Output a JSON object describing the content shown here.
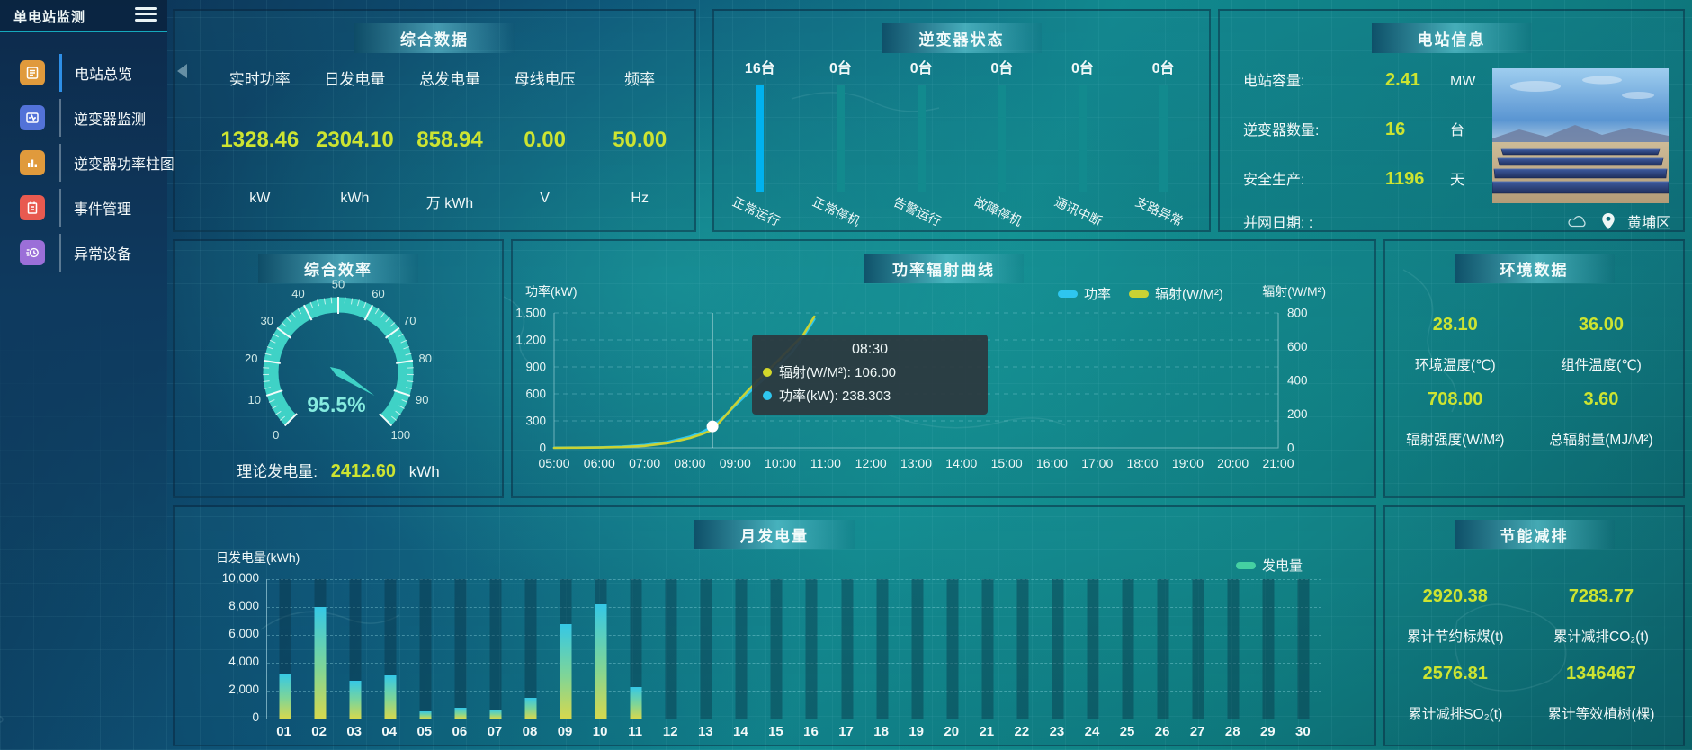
{
  "app": {
    "title": "单电站监测"
  },
  "colors": {
    "accent_yellow": "#cde431",
    "teal": "#3fd2c6",
    "cyan": "#2ec6ef"
  },
  "sidebar": {
    "items": [
      {
        "label": "电站总览",
        "color": "#e09a3c",
        "active": true
      },
      {
        "label": "逆变器监测",
        "color": "#5272d8",
        "active": false
      },
      {
        "label": "逆变器功率柱图",
        "color": "#e09a3c",
        "active": false
      },
      {
        "label": "事件管理",
        "color": "#e85a50",
        "active": false
      },
      {
        "label": "异常设备",
        "color": "#9b6fd8",
        "active": false
      }
    ]
  },
  "summary": {
    "title": "综合数据",
    "metrics": [
      {
        "label": "实时功率",
        "value": "1328.46",
        "unit": "kW"
      },
      {
        "label": "日发电量",
        "value": "2304.10",
        "unit": "kWh"
      },
      {
        "label": "总发电量",
        "value": "858.94",
        "unit": "万 kWh"
      },
      {
        "label": "母线电压",
        "value": "0.00",
        "unit": "V"
      },
      {
        "label": "频率",
        "value": "50.00",
        "unit": "Hz"
      }
    ]
  },
  "inverter_status": {
    "title": "逆变器状态",
    "items": [
      {
        "count": "16台",
        "label": "正常运行",
        "color": "#00b2ef"
      },
      {
        "count": "0台",
        "label": "正常停机",
        "color": "#128a8e"
      },
      {
        "count": "0台",
        "label": "告警运行",
        "color": "#128a8e"
      },
      {
        "count": "0台",
        "label": "故障停机",
        "color": "#128a8e"
      },
      {
        "count": "0台",
        "label": "通讯中断",
        "color": "#128a8e"
      },
      {
        "count": "0台",
        "label": "支路异常",
        "color": "#128a8e"
      }
    ]
  },
  "station_info": {
    "title": "电站信息",
    "rows": [
      {
        "label": "电站容量:",
        "value": "2.41",
        "unit": "MW"
      },
      {
        "label": "逆变器数量:",
        "value": "16",
        "unit": "台"
      },
      {
        "label": "安全生产:",
        "value": "1196",
        "unit": "天"
      },
      {
        "label": "并网日期: :",
        "value": "",
        "unit": ""
      }
    ],
    "location": "黄埔区"
  },
  "efficiency": {
    "title": "综合效率",
    "theory_label": "理论发电量:",
    "theory_value": "2412.60",
    "theory_unit": "kWh"
  },
  "environment": {
    "title": "环境数据",
    "metrics": [
      {
        "value": "28.10",
        "label": "环境温度(℃)"
      },
      {
        "value": "36.00",
        "label": "组件温度(℃)"
      },
      {
        "value": "708.00",
        "label": "辐射强度(W/M²)"
      },
      {
        "value": "3.60",
        "label": "总辐射量(MJ/M²)"
      }
    ]
  },
  "saving": {
    "title": "节能减排",
    "metrics": [
      {
        "value": "2920.38",
        "label": "累计节约标煤(t)"
      },
      {
        "value": "7283.77",
        "label": "累计减排CO₂(t)"
      },
      {
        "value": "2576.81",
        "label": "累计减排SO₂(t)"
      },
      {
        "value": "1346467",
        "label": "累计等效植树(棵)"
      }
    ]
  },
  "chart_data": [
    {
      "type": "line",
      "title": "功率辐射曲线",
      "x": [
        "05:00",
        "06:00",
        "07:00",
        "08:00",
        "09:00",
        "10:00",
        "11:00",
        "12:00",
        "13:00",
        "14:00",
        "15:00",
        "16:00",
        "17:00",
        "18:00",
        "19:00",
        "20:00",
        "21:00"
      ],
      "x_range": [
        5,
        21
      ],
      "left_axis": {
        "label": "功率(kW)",
        "ticks": [
          "0",
          "300",
          "600",
          "900",
          "1,200",
          "1,500"
        ],
        "max": 1500
      },
      "right_axis": {
        "label": "辐射(W/M²)",
        "ticks": [
          "0",
          "200",
          "400",
          "600",
          "800"
        ],
        "max": 800
      },
      "series": [
        {
          "name": "功率",
          "color": "#2ec6ef",
          "axis": "left",
          "points": [
            [
              5,
              2
            ],
            [
              5.5,
              3
            ],
            [
              6,
              6
            ],
            [
              6.5,
              14
            ],
            [
              7,
              32
            ],
            [
              7.5,
              65
            ],
            [
              8,
              125
            ],
            [
              8.25,
              170
            ],
            [
              8.5,
              238.3
            ],
            [
              8.75,
              345
            ],
            [
              9,
              470
            ],
            [
              9.25,
              590
            ],
            [
              9.5,
              705
            ],
            [
              9.75,
              815
            ],
            [
              10,
              935
            ],
            [
              10.25,
              1060
            ],
            [
              10.5,
              1230
            ],
            [
              10.75,
              1430
            ]
          ]
        },
        {
          "name": "辐射(W/M²)",
          "color": "#c9d234",
          "axis": "right",
          "points": [
            [
              5,
              0
            ],
            [
              5.5,
              1
            ],
            [
              6,
              2
            ],
            [
              6.5,
              5
            ],
            [
              7,
              12
            ],
            [
              7.5,
              28
            ],
            [
              8,
              58
            ],
            [
              8.25,
              80
            ],
            [
              8.5,
              106
            ],
            [
              8.75,
              180
            ],
            [
              9,
              258
            ],
            [
              9.25,
              330
            ],
            [
              9.5,
              398
            ],
            [
              9.75,
              465
            ],
            [
              10,
              532
            ],
            [
              10.25,
              600
            ],
            [
              10.5,
              668
            ],
            [
              10.75,
              778
            ]
          ]
        }
      ],
      "tooltip": {
        "time": "08:30",
        "hover_x": 8.5,
        "hover_power": 238.303,
        "rows": [
          {
            "color": "#d4d82a",
            "text": "辐射(W/M²): 106.00"
          },
          {
            "color": "#2ec6ef",
            "text": "功率(kW): 238.303"
          }
        ]
      }
    },
    {
      "type": "bar",
      "title": "月发电量",
      "ylabel": "日发电量(kWh)",
      "legend": {
        "label": "发电量",
        "color": "#45d0a2"
      },
      "categories": [
        "01",
        "02",
        "03",
        "04",
        "05",
        "06",
        "07",
        "08",
        "09",
        "10",
        "11",
        "12",
        "13",
        "14",
        "15",
        "16",
        "17",
        "18",
        "19",
        "20",
        "21",
        "22",
        "23",
        "24",
        "25",
        "26",
        "27",
        "28",
        "29",
        "30"
      ],
      "values": [
        3200,
        8000,
        2700,
        3100,
        500,
        800,
        650,
        1500,
        6800,
        8200,
        2250,
        0,
        0,
        0,
        0,
        0,
        0,
        0,
        0,
        0,
        0,
        0,
        0,
        0,
        0,
        0,
        0,
        0,
        0,
        0
      ],
      "ylim": [
        0,
        10000
      ],
      "yticks": [
        "0",
        "2,000",
        "4,000",
        "6,000",
        "8,000",
        "10,000"
      ]
    },
    {
      "type": "gauge",
      "title": "综合效率",
      "value": 95.5,
      "display": "95.5%",
      "min": 0,
      "max": 100
    }
  ]
}
